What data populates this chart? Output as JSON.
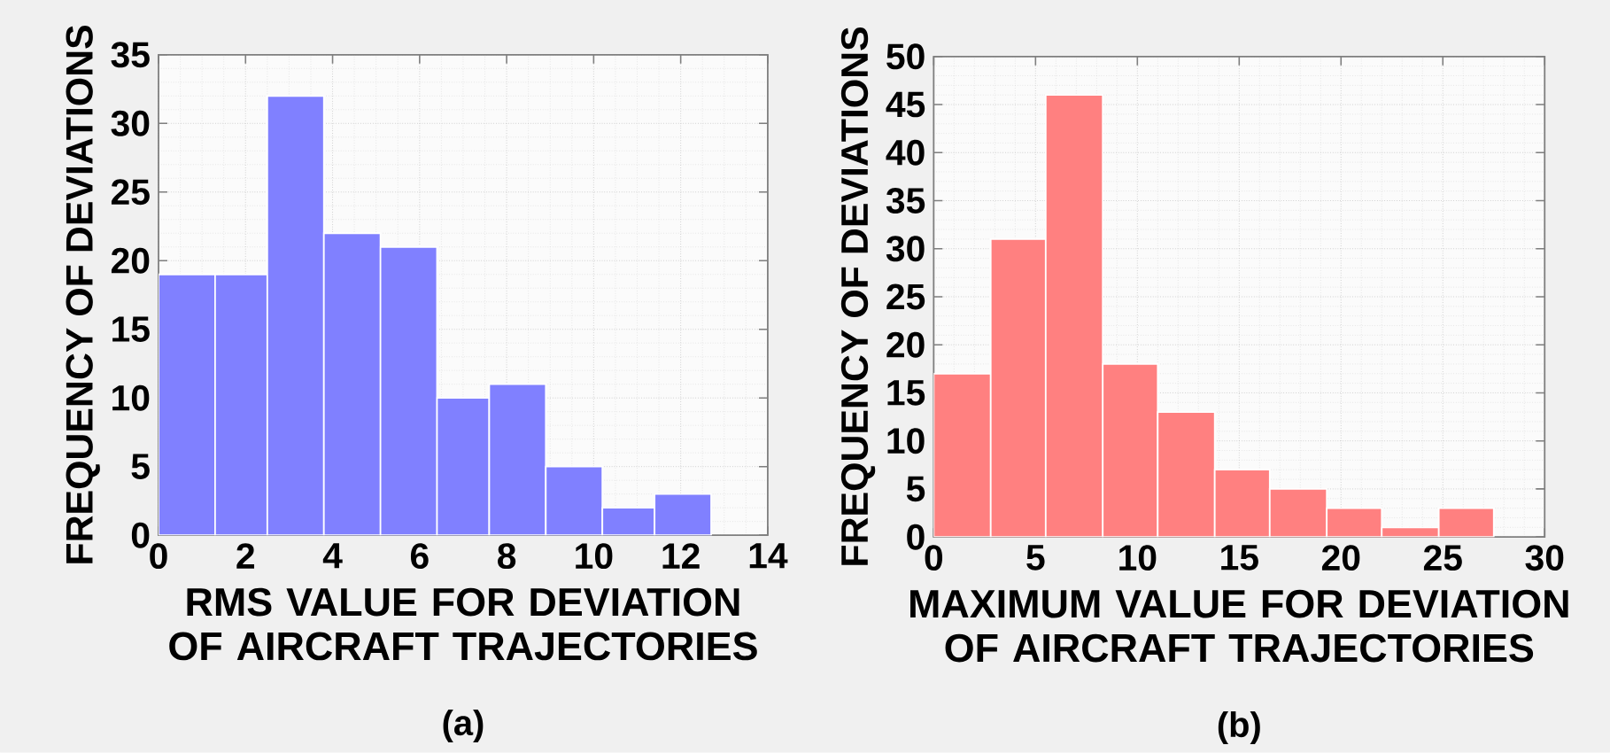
{
  "chart_data": [
    {
      "type": "histogram",
      "xlabel": "RMS VALUE FOR DEVIATION OF AIRCRAFT TRAJECTORIES",
      "ylabel": "FREQUENCY OF DEVIATIONS",
      "annotations": [
        "(a)"
      ],
      "bins": [
        0,
        1.3,
        2.5,
        3.8,
        5.1,
        6.4,
        7.6,
        8.9,
        10.2,
        11.4,
        12.7
      ],
      "values": [
        19,
        19,
        32,
        22,
        21,
        10,
        11,
        5,
        2,
        3
      ],
      "color": "#8080ff",
      "xlim": [
        0,
        14
      ],
      "xticks": [
        0,
        2,
        4,
        6,
        8,
        10,
        12,
        14
      ],
      "ylim": [
        0,
        35
      ],
      "yticks": [
        0,
        5,
        10,
        15,
        20,
        25,
        30,
        35
      ],
      "grid": true
    },
    {
      "type": "histogram",
      "xlabel": "MAXIMUM VALUE FOR DEVIATION OF AIRCRAFT TRAJECTORIES",
      "ylabel": "FREQUENCY OF DEVIATIONS",
      "annotations": [
        "(b)"
      ],
      "bins": [
        0,
        2.8,
        5.5,
        8.3,
        11,
        13.8,
        16.5,
        19.3,
        22,
        24.8,
        27.5
      ],
      "values": [
        17,
        31,
        46,
        18,
        13,
        7,
        5,
        3,
        1,
        3
      ],
      "color": "#ff8080",
      "xlim": [
        0,
        30
      ],
      "xticks": [
        0,
        5,
        10,
        15,
        20,
        25,
        30
      ],
      "ylim": [
        0,
        50
      ],
      "yticks": [
        0,
        5,
        10,
        15,
        20,
        25,
        30,
        35,
        40,
        45,
        50
      ],
      "grid": true
    }
  ]
}
